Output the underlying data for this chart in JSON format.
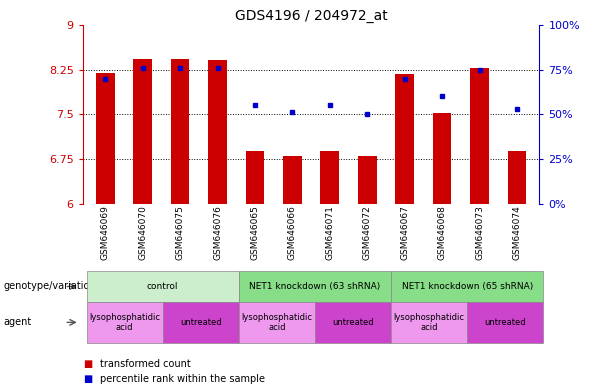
{
  "title": "GDS4196 / 204972_at",
  "samples": [
    "GSM646069",
    "GSM646070",
    "GSM646075",
    "GSM646076",
    "GSM646065",
    "GSM646066",
    "GSM646071",
    "GSM646072",
    "GSM646067",
    "GSM646068",
    "GSM646073",
    "GSM646074"
  ],
  "bar_values": [
    8.19,
    8.42,
    8.43,
    8.41,
    6.88,
    6.8,
    6.88,
    6.79,
    8.17,
    7.52,
    8.27,
    6.88
  ],
  "dot_values": [
    70,
    76,
    76,
    76,
    55,
    51,
    55,
    50,
    70,
    60,
    75,
    53
  ],
  "ylim_left": [
    6,
    9
  ],
  "ylim_right": [
    0,
    100
  ],
  "yticks_left": [
    6,
    6.75,
    7.5,
    8.25,
    9
  ],
  "yticks_right": [
    0,
    25,
    50,
    75,
    100
  ],
  "ytick_labels_left": [
    "6",
    "6.75",
    "7.5",
    "8.25",
    "9"
  ],
  "ytick_labels_right": [
    "0%",
    "25%",
    "50%",
    "75%",
    "100%"
  ],
  "bar_color": "#cc0000",
  "dot_color": "#0000cc",
  "grid_lines": [
    6.75,
    7.5,
    8.25
  ],
  "genotype_groups": [
    {
      "label": "control",
      "start": 0,
      "end": 4,
      "color": "#cceecc"
    },
    {
      "label": "NET1 knockdown (63 shRNA)",
      "start": 4,
      "end": 8,
      "color": "#88dd88"
    },
    {
      "label": "NET1 knockdown (65 shRNA)",
      "start": 8,
      "end": 12,
      "color": "#88dd88"
    }
  ],
  "agent_groups": [
    {
      "label": "lysophosphatidic\nacid",
      "start": 0,
      "end": 2,
      "color": "#ee99ee"
    },
    {
      "label": "untreated",
      "start": 2,
      "end": 4,
      "color": "#cc44cc"
    },
    {
      "label": "lysophosphatidic\nacid",
      "start": 4,
      "end": 6,
      "color": "#ee99ee"
    },
    {
      "label": "untreated",
      "start": 6,
      "end": 8,
      "color": "#cc44cc"
    },
    {
      "label": "lysophosphatidic\nacid",
      "start": 8,
      "end": 10,
      "color": "#ee99ee"
    },
    {
      "label": "untreated",
      "start": 10,
      "end": 12,
      "color": "#cc44cc"
    }
  ],
  "legend_items": [
    {
      "label": "transformed count",
      "color": "#cc0000"
    },
    {
      "label": "percentile rank within the sample",
      "color": "#0000cc"
    }
  ],
  "bar_width": 0.5,
  "ybase": 6,
  "fig_width": 6.13,
  "fig_height": 3.84,
  "dpi": 100
}
